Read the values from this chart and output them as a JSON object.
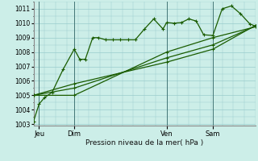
{
  "title": "Pression niveau de la mer( hPa )",
  "bg_color": "#cceee8",
  "plot_bg_color": "#cceee8",
  "grid_color": "#99cccc",
  "line_color": "#1a5c00",
  "ylim_min": 1003.0,
  "ylim_max": 1011.5,
  "yticks": [
    1003,
    1004,
    1005,
    1006,
    1007,
    1008,
    1009,
    1010,
    1011
  ],
  "xtick_labels": [
    "Jeu",
    "Dim",
    "Ven",
    "Sam"
  ],
  "xtick_positions": [
    3,
    22,
    72,
    97
  ],
  "vline_positions": [
    3,
    22,
    72,
    97
  ],
  "xlim_min": 0,
  "xlim_max": 120,
  "series1_x": [
    0,
    3,
    6,
    10,
    16,
    22,
    25,
    28,
    32,
    35,
    39,
    43,
    47,
    51,
    55,
    60,
    65,
    70,
    72,
    76,
    80,
    84,
    88,
    92,
    97,
    102,
    107,
    112,
    117,
    120
  ],
  "series1_y": [
    1003.2,
    1004.4,
    1004.85,
    1005.2,
    1006.8,
    1008.2,
    1007.5,
    1007.5,
    1009.0,
    1009.0,
    1008.85,
    1008.85,
    1008.85,
    1008.85,
    1008.85,
    1009.6,
    1010.3,
    1009.6,
    1010.05,
    1010.0,
    1010.05,
    1010.3,
    1010.15,
    1009.2,
    1009.15,
    1011.0,
    1011.2,
    1010.65,
    1009.95,
    1009.8
  ],
  "series2_x": [
    0,
    22,
    72,
    97,
    120
  ],
  "series2_y": [
    1005.0,
    1005.0,
    1008.0,
    1009.0,
    1009.75
  ],
  "series3_x": [
    0,
    22,
    72,
    97,
    120
  ],
  "series3_y": [
    1005.0,
    1005.5,
    1007.6,
    1008.5,
    1009.8
  ],
  "series4_x": [
    0,
    22,
    72,
    97,
    120
  ],
  "series4_y": [
    1005.0,
    1005.8,
    1007.3,
    1008.2,
    1009.85
  ]
}
